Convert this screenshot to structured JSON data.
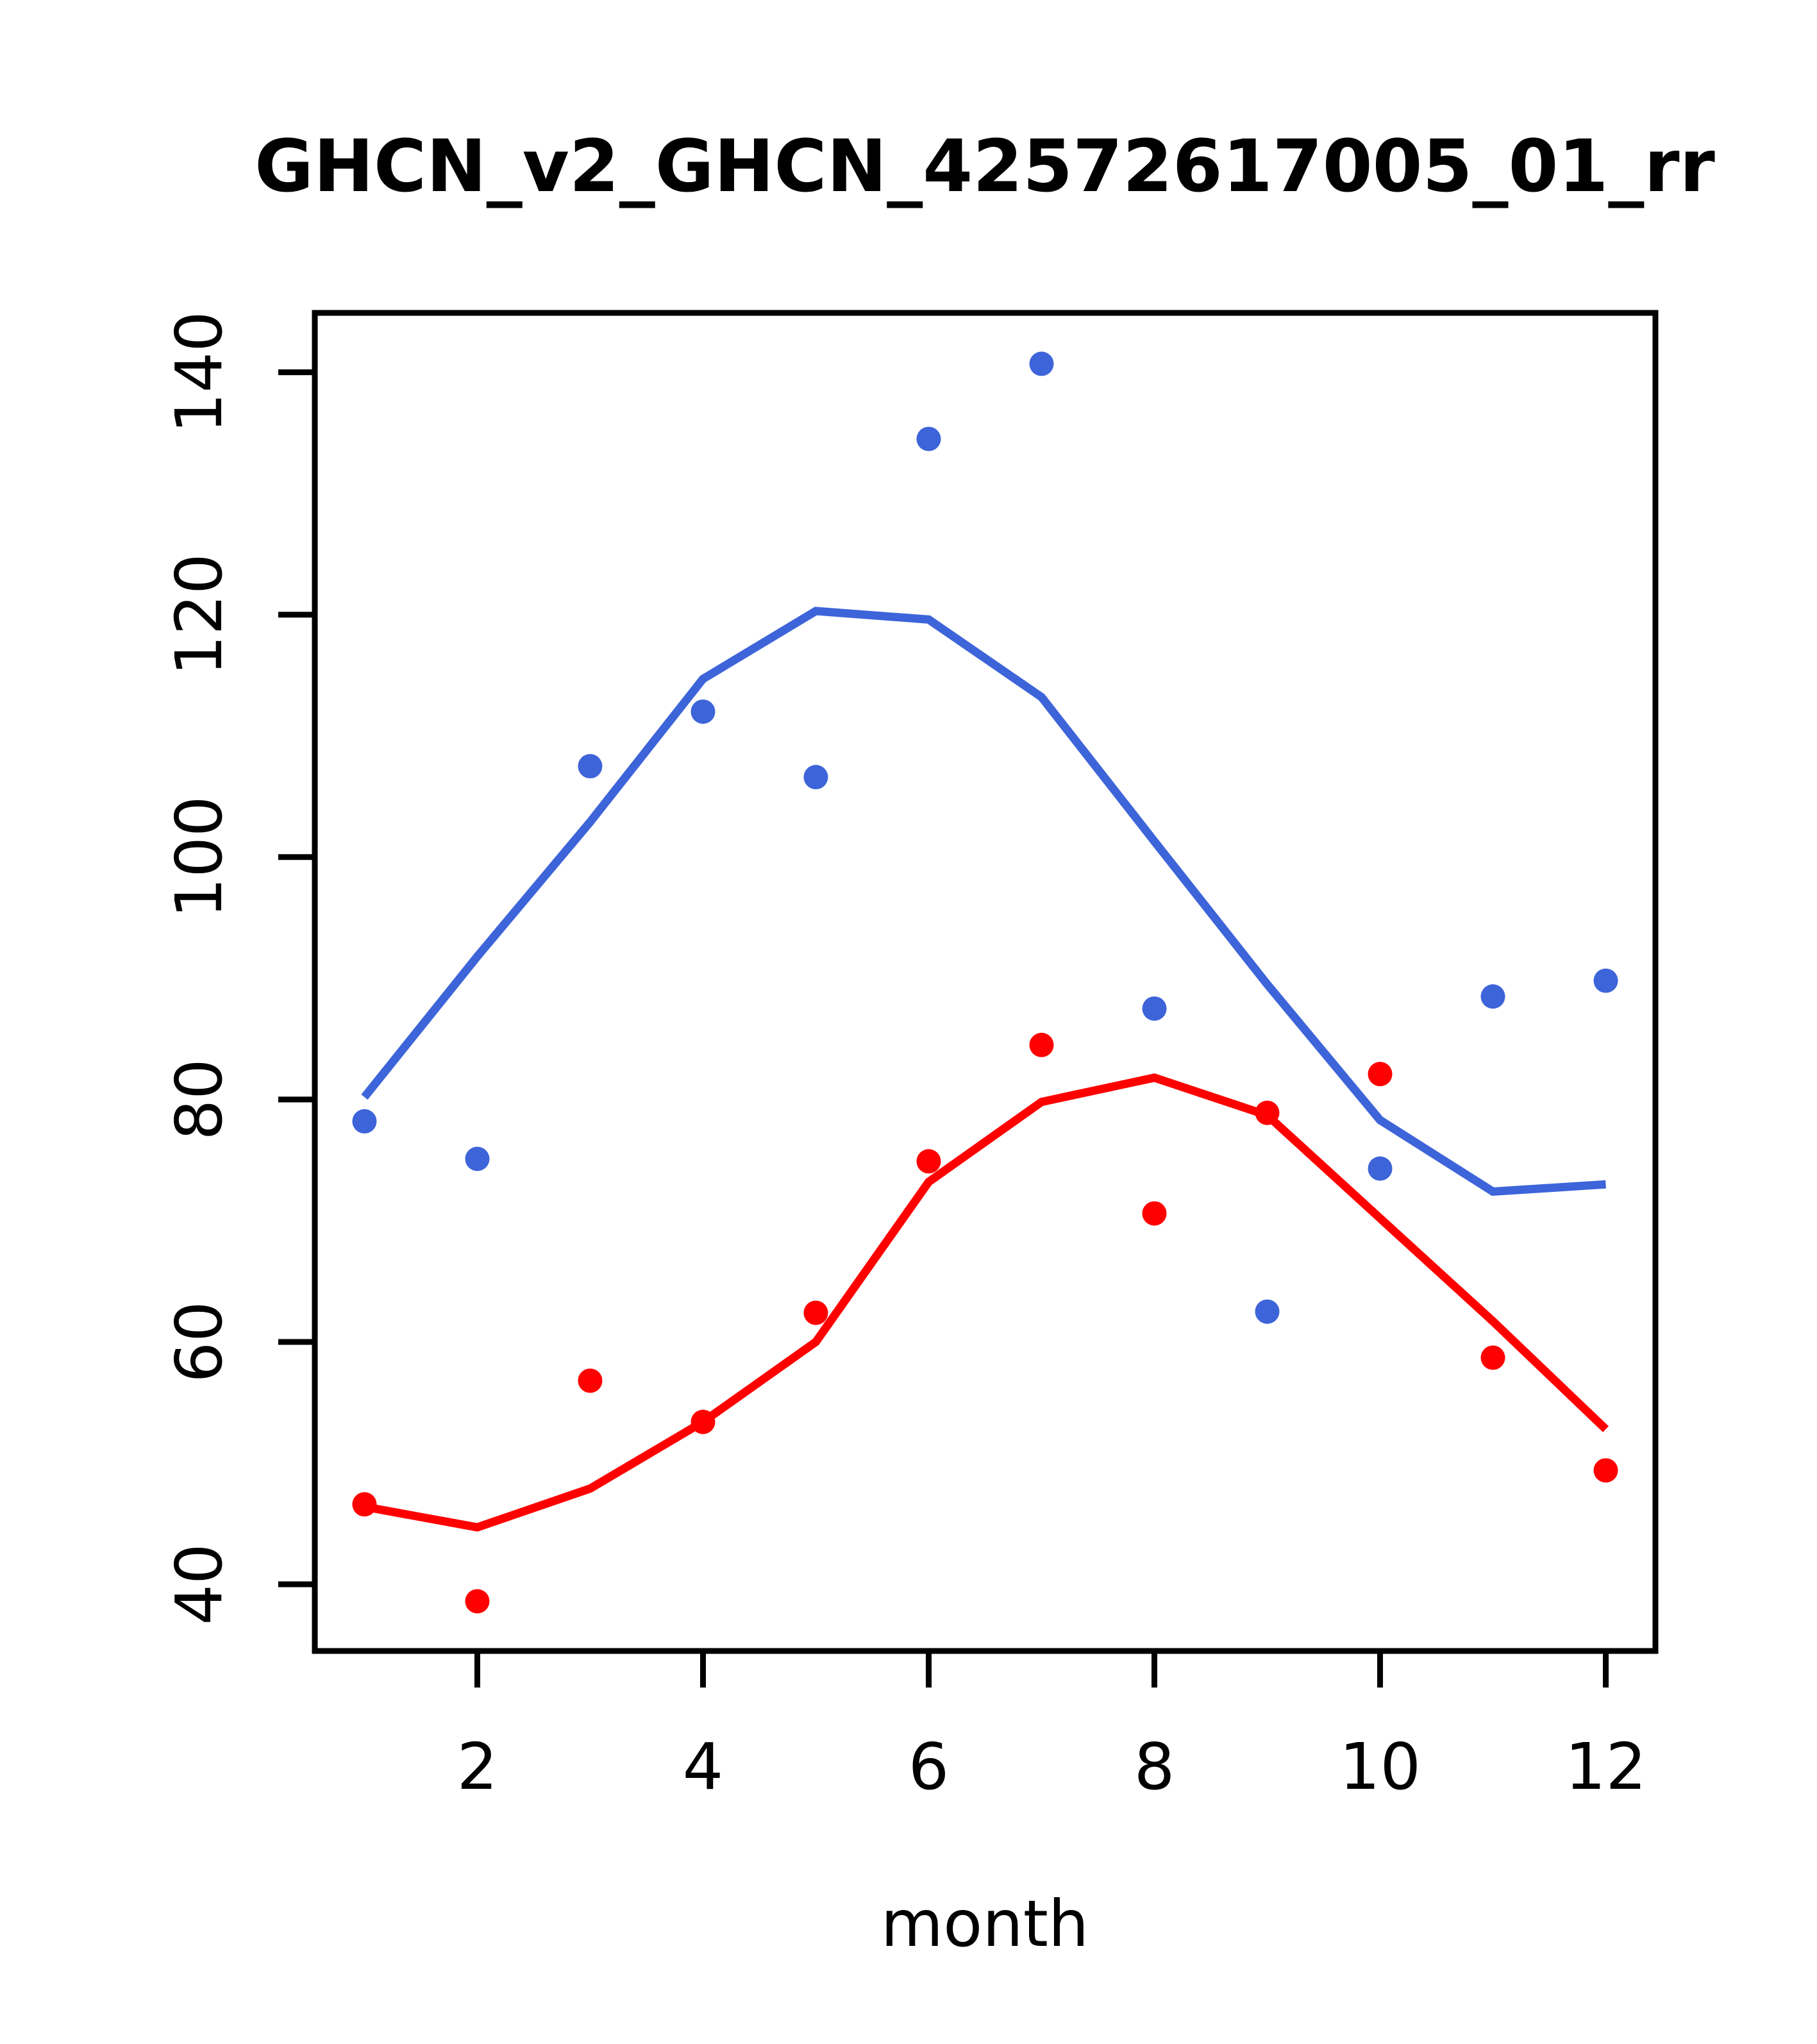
{
  "title": "GHCN_v2_GHCN_42572617005_01_rr",
  "chart_data": {
    "type": "scatter",
    "title": "GHCN_v2_GHCN_42572617005_01_rr",
    "xlabel": "month",
    "ylabel": "",
    "x": [
      1,
      2,
      3,
      4,
      5,
      6,
      7,
      8,
      9,
      10,
      11,
      12
    ],
    "xlim": [
      0.56,
      12.44
    ],
    "ylim": [
      34.5,
      144.9
    ],
    "xticks": [
      2,
      4,
      6,
      8,
      10,
      12
    ],
    "yticks": [
      40,
      60,
      80,
      100,
      120,
      140
    ],
    "grid": false,
    "legend": "none",
    "series": [
      {
        "name": "series-1-points",
        "type": "points",
        "color": "#3D64D9",
        "values": [
          78.2,
          75.1,
          107.5,
          112.0,
          106.6,
          134.5,
          140.7,
          87.5,
          62.5,
          74.3,
          88.5,
          89.8
        ]
      },
      {
        "name": "series-1-lowess-line",
        "type": "line",
        "color": "#3D64D9",
        "values": [
          80.2,
          91.8,
          102.9,
          114.7,
          120.3,
          119.6,
          113.2,
          101.3,
          89.5,
          78.3,
          72.4,
          73.0
        ]
      },
      {
        "name": "series-2-points",
        "type": "points",
        "color": "#FF0000",
        "values": [
          46.6,
          38.6,
          56.8,
          53.4,
          62.4,
          74.9,
          84.5,
          70.6,
          78.9,
          82.1,
          58.7,
          49.4
        ]
      },
      {
        "name": "series-2-lowess-line",
        "type": "line",
        "color": "#FF0000",
        "values": [
          46.4,
          44.7,
          47.9,
          53.4,
          60.0,
          73.2,
          79.8,
          81.8,
          78.7,
          70.2,
          61.7,
          52.8
        ]
      }
    ]
  },
  "colors": {
    "background": "#FFFFFF",
    "axis": "#000000",
    "series1": "#3D64D9",
    "series2": "#FF0000"
  }
}
